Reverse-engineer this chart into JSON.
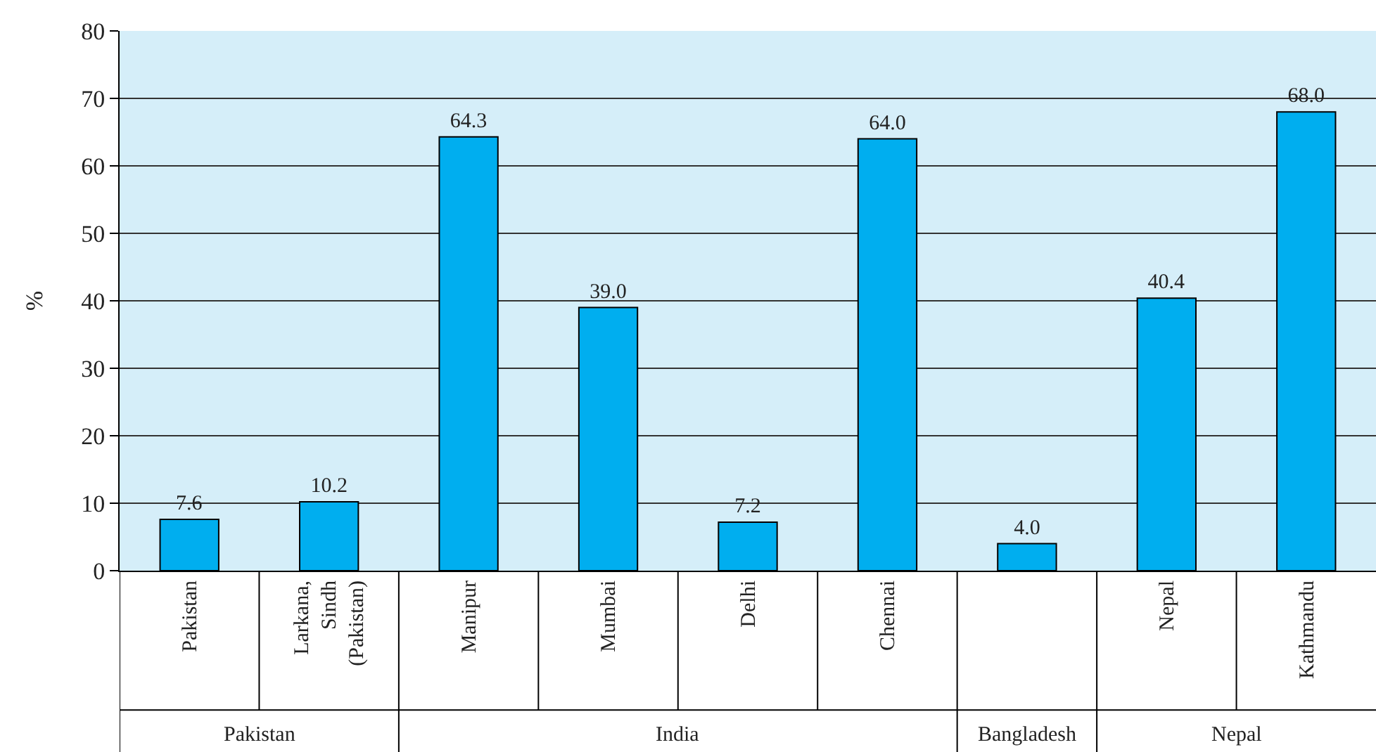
{
  "chart_data": {
    "type": "bar",
    "ylabel": "%",
    "categories": [
      "Pakistan",
      "Larkana,\nSindh\n(Pakistan)",
      "Manipur",
      "Mumbai",
      "Delhi",
      "Chennai",
      null,
      "Nepal",
      "Kathmandu"
    ],
    "values": [
      7.6,
      10.2,
      64.3,
      39.0,
      7.2,
      64.0,
      4.0,
      40.4,
      68.0
    ],
    "value_labels": [
      "7.6",
      "10.2",
      "64.3",
      "39.0",
      "7.2",
      "64.0",
      "4.0",
      "40.4",
      "68.0"
    ],
    "color": "#00aeef",
    "ylim": [
      0,
      80
    ],
    "yticks": [
      0,
      10,
      20,
      30,
      40,
      50,
      60,
      70,
      80
    ],
    "grid": "y",
    "annotations": [
      "Pakistan",
      "India",
      "Bangladesh",
      "Nepal"
    ]
  }
}
